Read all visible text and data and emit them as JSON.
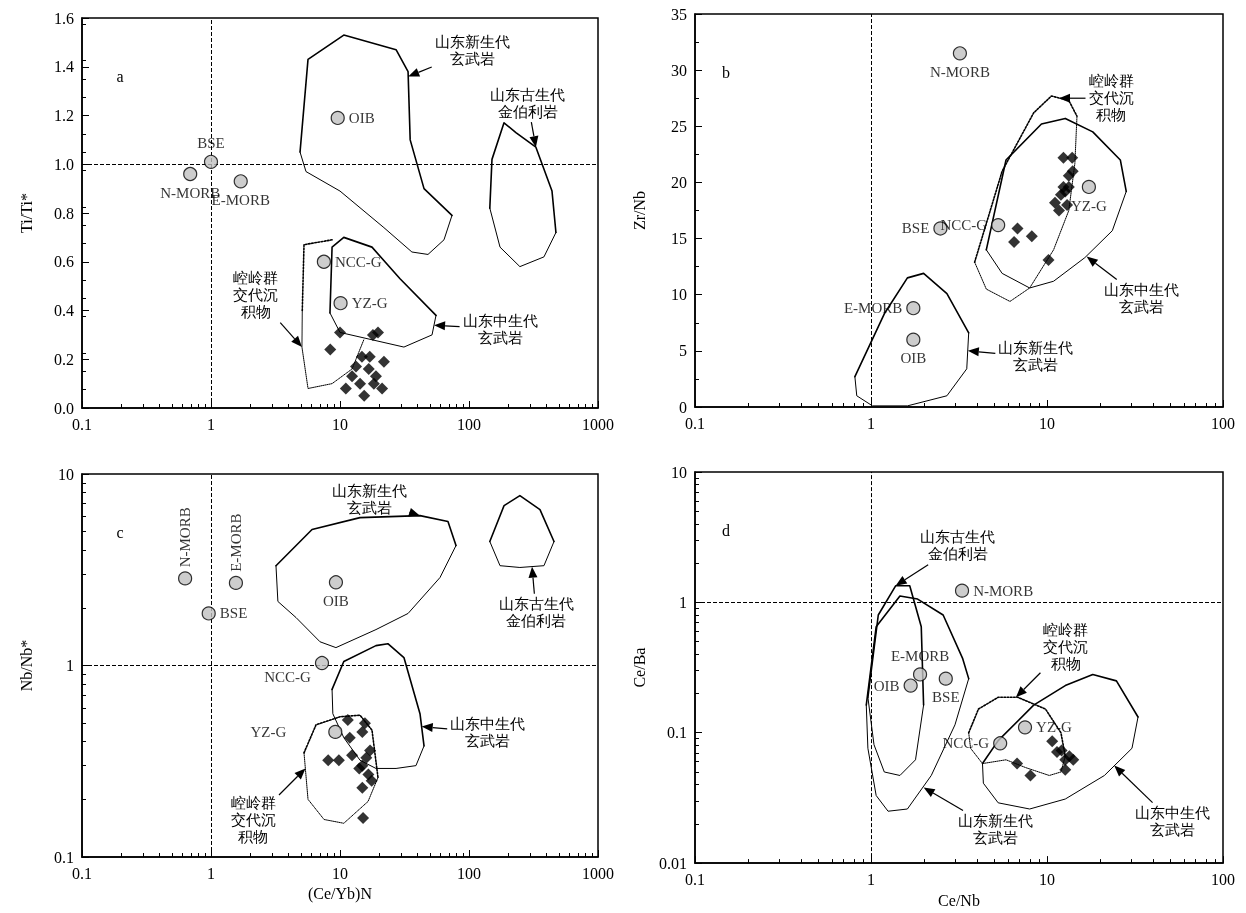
{
  "chart_data": [
    {
      "type": "scatter",
      "ylabel": "Ti/Ti*",
      "log": "x",
      "xlim": [
        0.1,
        1000
      ],
      "xticks": [
        0.1,
        1,
        10,
        100,
        1000
      ],
      "ylim": [
        0,
        1.6
      ],
      "yticks": [
        {
          "value": 0,
          "label": "0.0"
        },
        0.2,
        0.4,
        0.6,
        0.8,
        {
          "value": 1,
          "label": "1.0"
        },
        1.2,
        1.4,
        1.6
      ],
      "ref_lines": [
        {
          "axis": "x",
          "value": 1,
          "line_style": "dashed"
        },
        {
          "axis": "y",
          "value": 1,
          "line_style": "dashed"
        }
      ],
      "annotations": [
        "a",
        {
          "text": "山东新生代玄武岩",
          "x": 33.8,
          "y": 1.36
        },
        {
          "text": "山东古生代金伯利岩",
          "x": 330,
          "y": 1.07
        },
        {
          "text": "山东中生代玄武岩",
          "x": 53.6,
          "y": 0.34
        },
        {
          "text": "崆岭群交代沉积物",
          "x": 5.07,
          "y": 0.25
        }
      ],
      "series": [
        {
          "type": "line",
          "color": "#000000",
          "line_style": "solid",
          "marker": "none",
          "x": [
            4.9,
            5.65,
            10.7,
            27.2,
            33.7,
            35,
            44.8,
            73.8
          ],
          "values": [
            1.05,
            1.43,
            1.53,
            1.47,
            1.38,
            1.1,
            0.9,
            0.79
          ]
        },
        {
          "type": "line",
          "color": "#000000",
          "line_style": "solid",
          "marker": "none",
          "x": [
            4.9,
            5.45,
            10,
            21.9,
            36.1,
            48.1,
            64.0,
            73.8
          ],
          "values": [
            1.05,
            0.97,
            0.89,
            0.74,
            0.64,
            0.63,
            0.69,
            0.79
          ]
        },
        {
          "type": "line",
          "color": "#000000",
          "line_style": "solid",
          "marker": "none",
          "x": [
            145,
            150.7,
            186.8,
            231,
            330,
            440,
            472
          ],
          "values": [
            0.82,
            1.02,
            1.17,
            1.13,
            1.07,
            0.89,
            0.72
          ]
        },
        {
          "type": "line",
          "color": "#000000",
          "line_style": "solid",
          "marker": "none",
          "x": [
            145,
            174,
            248,
            381,
            472
          ],
          "values": [
            0.82,
            0.66,
            0.58,
            0.62,
            0.72
          ]
        },
        {
          "type": "line",
          "color": "#000000",
          "line_style": "solid",
          "marker": "none",
          "x": [
            8.36,
            8.68,
            10.7,
            17.7,
            29.2,
            55.5
          ],
          "values": [
            0.39,
            0.66,
            0.7,
            0.66,
            0.53,
            0.38
          ]
        },
        {
          "type": "line",
          "color": "#000000",
          "line_style": "solid",
          "marker": "none",
          "x": [
            8.36,
            10,
            17.7,
            31.3,
            51.7,
            55.5
          ],
          "values": [
            0.39,
            0.31,
            0.28,
            0.25,
            0.3,
            0.38
          ]
        },
        {
          "type": "line",
          "color": "#000000",
          "line_style": "dotted",
          "marker": "none",
          "x": [
            5.1,
            5.26,
            8.68
          ],
          "values": [
            0.4,
            0.67,
            0.69
          ]
        },
        {
          "type": "line",
          "color": "#000000",
          "line_style": "dotted",
          "marker": "none",
          "x": [
            5.1,
            5.07,
            5.65,
            8.68,
            12.4,
            15.3
          ],
          "values": [
            0.4,
            0.25,
            0.08,
            0.1,
            0.16,
            0.28
          ]
        },
        {
          "type": "scatter",
          "color": "#000000",
          "marker": "diamond",
          "x": [
            10,
            8.4,
            19.7,
            18,
            11.1,
            13.3,
            14.8,
            17,
            21.9,
            12.4,
            15.4,
            18.3,
            21.2,
            19,
            16.7,
            14.3
          ],
          "values": [
            0.31,
            0.24,
            0.31,
            0.3,
            0.08,
            0.17,
            0.21,
            0.21,
            0.19,
            0.13,
            0.05,
            0.1,
            0.08,
            0.13,
            0.16,
            0.1
          ]
        },
        {
          "type": "scatter",
          "name": "N-MORB",
          "color": "#c0c0c0",
          "marker": "circle",
          "x": [
            0.69
          ],
          "values": [
            0.96
          ]
        },
        {
          "type": "scatter",
          "name": "BSE",
          "color": "#c0c0c0",
          "marker": "circle",
          "x": [
            1.0
          ],
          "values": [
            1.01
          ]
        },
        {
          "type": "scatter",
          "name": "E-MORB",
          "color": "#c0c0c0",
          "marker": "circle",
          "x": [
            1.7
          ],
          "values": [
            0.93
          ]
        },
        {
          "type": "scatter",
          "name": "OIB",
          "color": "#c0c0c0",
          "marker": "circle",
          "x": [
            9.6
          ],
          "values": [
            1.19
          ]
        },
        {
          "type": "scatter",
          "name": "NCC-G",
          "color": "#c0c0c0",
          "marker": "circle",
          "x": [
            7.5
          ],
          "values": [
            0.6
          ]
        },
        {
          "type": "scatter",
          "name": "YZ-G",
          "color": "#c0c0c0",
          "marker": "circle",
          "x": [
            10.1
          ],
          "values": [
            0.43
          ]
        }
      ]
    },
    {
      "type": "scatter",
      "ylabel": "Zr/Nb",
      "log": "x",
      "xlim": [
        0.1,
        100
      ],
      "xticks": [
        0.1,
        1,
        10,
        100
      ],
      "ylim": [
        0,
        35
      ],
      "yticks": [
        0,
        5,
        10,
        15,
        20,
        25,
        30,
        35
      ],
      "ref_lines": [
        {
          "axis": "x",
          "value": 1,
          "line_style": "dashed"
        }
      ],
      "annotations": [
        "b",
        {
          "text": "崆岭群交代沉积物",
          "x": 11.7,
          "y": 27.5
        },
        {
          "text": "山东中生代玄武岩",
          "x": 16.8,
          "y": 13.4
        },
        {
          "text": "山东新生代玄武岩",
          "x": 3.55,
          "y": 5.0
        }
      ],
      "series": [
        {
          "type": "line",
          "color": "#000000",
          "line_style": "solid",
          "marker": "none",
          "x": [
            0.81,
            1.19,
            1.61,
            1.99,
            2.7,
            3.59
          ],
          "values": [
            2.7,
            8.3,
            11.5,
            11.9,
            10.1,
            6.6
          ]
        },
        {
          "type": "line",
          "color": "#000000",
          "line_style": "solid",
          "marker": "none",
          "x": [
            0.81,
            0.83,
            1.02,
            1.61,
            2.7,
            3.5,
            3.59
          ],
          "values": [
            2.7,
            1.0,
            0.1,
            0.1,
            1.0,
            3.4,
            6.6
          ]
        },
        {
          "type": "line",
          "color": "#000000",
          "line_style": "solid",
          "marker": "none",
          "x": [
            4.52,
            5.85,
            9.3,
            12.7,
            18.2,
            26.1,
            28.2
          ],
          "values": [
            14.0,
            22.0,
            25.2,
            25.7,
            24.5,
            22.0,
            19.2
          ]
        },
        {
          "type": "line",
          "color": "#000000",
          "line_style": "solid",
          "marker": "none",
          "x": [
            4.52,
            5.56,
            7.97,
            10.9,
            16.4,
            23.5,
            28.2
          ],
          "values": [
            14.0,
            11.9,
            10.6,
            11.2,
            13.3,
            15.7,
            19.2
          ]
        },
        {
          "type": "line",
          "color": "#000000",
          "line_style": "dotted",
          "marker": "none",
          "x": [
            3.88,
            5.56,
            8.4,
            10.6,
            13.3,
            14.8
          ],
          "values": [
            12.9,
            21.0,
            26.2,
            27.7,
            27.3,
            25.9
          ]
        },
        {
          "type": "line",
          "color": "#000000",
          "line_style": "dotted",
          "marker": "none",
          "x": [
            3.88,
            4.52,
            6.16,
            7.97,
            10.9,
            13.3,
            14.4,
            14.8
          ],
          "values": [
            12.9,
            10.5,
            9.4,
            10.6,
            14.0,
            17.5,
            21.7,
            25.9
          ]
        },
        {
          "type": "scatter",
          "color": "#000000",
          "marker": "diamond",
          "x": [
            12.4,
            13.9,
            13.3,
            14.0,
            12.4,
            12.0,
            11.1,
            11.7,
            13.0,
            12.7,
            6.8,
            6.5,
            8.2,
            10.2,
            13.3
          ],
          "values": [
            22.2,
            22.2,
            20.6,
            21.0,
            19.6,
            18.9,
            18.2,
            17.5,
            18.0,
            19.2,
            15.9,
            14.7,
            15.2,
            13.1,
            19.6
          ]
        },
        {
          "type": "scatter",
          "name": "N-MORB",
          "color": "#c0c0c0",
          "marker": "circle",
          "x": [
            3.2
          ],
          "values": [
            31.5
          ]
        },
        {
          "type": "scatter",
          "name": "BSE",
          "color": "#c0c0c0",
          "marker": "circle",
          "x": [
            2.48
          ],
          "values": [
            15.9
          ]
        },
        {
          "type": "scatter",
          "name": "E-MORB",
          "color": "#c0c0c0",
          "marker": "circle",
          "x": [
            1.74
          ],
          "values": [
            8.8
          ]
        },
        {
          "type": "scatter",
          "name": "OIB",
          "color": "#c0c0c0",
          "marker": "circle",
          "x": [
            1.74
          ],
          "values": [
            6.0
          ]
        },
        {
          "type": "scatter",
          "name": "NCC-G",
          "color": "#c0c0c0",
          "marker": "circle",
          "x": [
            5.28
          ],
          "values": [
            16.2
          ]
        },
        {
          "type": "scatter",
          "name": "YZ-G",
          "color": "#c0c0c0",
          "marker": "circle",
          "x": [
            17.3
          ],
          "values": [
            19.6
          ]
        }
      ]
    },
    {
      "type": "scatter",
      "xlabel": "(Ce/Yb)N",
      "ylabel": "Nb/Nb*",
      "log": "xy",
      "xlim": [
        0.1,
        1000
      ],
      "xticks": [
        0.1,
        1,
        10,
        100,
        1000
      ],
      "ylim": [
        0.1,
        10
      ],
      "yticks": [
        0.1,
        1,
        10
      ],
      "ref_lines": [
        {
          "axis": "x",
          "value": 1,
          "line_style": "dashed"
        },
        {
          "axis": "y",
          "value": 1,
          "line_style": "dashed"
        }
      ],
      "annotations": [
        "c",
        {
          "text": "山东新生代玄武岩",
          "x": 41.7,
          "y": 6.06
        },
        {
          "text": "山东古生代金伯利岩",
          "x": 308,
          "y": 3.28
        },
        {
          "text": "山东中生代玄武岩",
          "x": 43,
          "y": 0.48
        },
        {
          "text": "崆岭群交代沉积物",
          "x": 5.4,
          "y": 0.29
        }
      ],
      "series": [
        {
          "type": "line",
          "color": "#000000",
          "line_style": "solid",
          "marker": "none",
          "x": [
            3.19,
            6.07,
            14.3,
            41.7,
            68.7,
            79.3
          ],
          "values": [
            3.32,
            5.13,
            5.92,
            6.06,
            5.65,
            4.23
          ]
        },
        {
          "type": "line",
          "color": "#000000",
          "line_style": "solid",
          "marker": "none",
          "x": [
            3.19,
            3.3,
            4.56,
            7.0,
            9.3,
            19.0,
            33.7,
            59.6,
            79.3
          ],
          "values": [
            3.32,
            2.16,
            1.78,
            1.33,
            1.24,
            1.54,
            1.87,
            2.88,
            4.23
          ]
        },
        {
          "type": "line",
          "color": "#000000",
          "line_style": "solid",
          "marker": "none",
          "x": [
            145,
            187,
            248,
            355,
            456
          ],
          "values": [
            4.44,
            6.84,
            7.71,
            6.52,
            4.44
          ]
        },
        {
          "type": "line",
          "color": "#000000",
          "line_style": "solid",
          "marker": "none",
          "x": [
            145,
            174,
            248,
            381,
            456
          ],
          "values": [
            4.44,
            3.32,
            3.25,
            3.32,
            4.44
          ]
        },
        {
          "type": "line",
          "color": "#000000",
          "line_style": "solid",
          "marker": "none",
          "x": [
            8.68,
            10.7,
            19.0,
            23.5,
            31.3,
            41.7,
            44.8
          ],
          "values": [
            0.75,
            1.05,
            1.27,
            1.3,
            1.1,
            0.56,
            0.38
          ]
        },
        {
          "type": "line",
          "color": "#000000",
          "line_style": "solid",
          "marker": "none",
          "x": [
            8.68,
            8.8,
            10.7,
            14.3,
            19.0,
            27.2,
            38.8,
            44.8
          ],
          "values": [
            0.75,
            0.56,
            0.42,
            0.32,
            0.29,
            0.29,
            0.3,
            0.38
          ]
        },
        {
          "type": "line",
          "color": "#000000",
          "line_style": "dotted",
          "marker": "none",
          "x": [
            5.26,
            6.52,
            10,
            14.3,
            17.7,
            19.7
          ],
          "values": [
            0.35,
            0.49,
            0.54,
            0.55,
            0.46,
            0.26
          ]
        },
        {
          "type": "line",
          "color": "#000000",
          "line_style": "dotted",
          "marker": "none",
          "x": [
            5.26,
            5.65,
            7.52,
            10.7,
            16.5,
            19.7
          ],
          "values": [
            0.35,
            0.2,
            0.157,
            0.15,
            0.195,
            0.26
          ]
        },
        {
          "type": "scatter",
          "color": "#000000",
          "marker": "diamond",
          "x": [
            11.5,
            15.6,
            11.9,
            14.9,
            8.1,
            9.8,
            12.4,
            17.1,
            14.9,
            16.6,
            17.6,
            14.9,
            15.1,
            14.1,
            16.0
          ],
          "values": [
            0.52,
            0.5,
            0.42,
            0.45,
            0.32,
            0.32,
            0.34,
            0.36,
            0.3,
            0.27,
            0.25,
            0.23,
            0.16,
            0.29,
            0.33
          ]
        },
        {
          "type": "scatter",
          "name": "N-MORB",
          "color": "#c0c0c0",
          "marker": "circle",
          "x": [
            0.63
          ],
          "values": [
            2.85
          ]
        },
        {
          "type": "scatter",
          "name": "BSE",
          "color": "#c0c0c0",
          "marker": "circle",
          "x": [
            0.96
          ],
          "values": [
            1.87
          ]
        },
        {
          "type": "scatter",
          "name": "E-MORB",
          "color": "#c0c0c0",
          "marker": "circle",
          "x": [
            1.56
          ],
          "values": [
            2.7
          ]
        },
        {
          "type": "scatter",
          "name": "OIB",
          "color": "#c0c0c0",
          "marker": "circle",
          "x": [
            9.3
          ],
          "values": [
            2.72
          ]
        },
        {
          "type": "scatter",
          "name": "NCC-G",
          "color": "#c0c0c0",
          "marker": "circle",
          "x": [
            7.25
          ],
          "values": [
            1.03
          ]
        },
        {
          "type": "scatter",
          "name": "YZ-G",
          "color": "#c0c0c0",
          "marker": "circle",
          "x": [
            9.2
          ],
          "values": [
            0.45
          ]
        }
      ]
    },
    {
      "type": "scatter",
      "xlabel": "Ce/Nb",
      "ylabel": "Ce/Ba",
      "log": "xy",
      "xlim": [
        0.1,
        100
      ],
      "xticks": [
        0.1,
        1,
        10,
        100
      ],
      "ylim": [
        0.01,
        10
      ],
      "yticks": [
        0.01,
        0.1,
        1,
        10
      ],
      "ref_lines": [
        {
          "axis": "x",
          "value": 1,
          "line_style": "dashed"
        },
        {
          "axis": "y",
          "value": 1,
          "line_style": "dashed"
        }
      ],
      "annotations": [
        "d",
        {
          "text": "山东古生代金伯利岩",
          "x": 1.38,
          "y": 1.34
        },
        {
          "text": "山东新生代玄武岩",
          "x": 1.99,
          "y": 0.038
        },
        {
          "text": "崆岭群交代沉积物",
          "x": 6.66,
          "y": 0.187
        },
        {
          "text": "山东中生代玄武岩",
          "x": 24.1,
          "y": 0.056
        }
      ],
      "series": [
        {
          "type": "line",
          "color": "#000000",
          "line_style": "solid",
          "marker": "none",
          "x": [
            0.96,
            1.1,
            1.38,
            1.66,
            1.93,
            1.99
          ],
          "values": [
            0.187,
            0.8,
            1.34,
            1.34,
            0.65,
            0.163
          ]
        },
        {
          "type": "line",
          "color": "#000000",
          "line_style": "solid",
          "marker": "none",
          "x": [
            0.96,
            1.04,
            1.19,
            1.46,
            1.79,
            1.99
          ],
          "values": [
            0.187,
            0.081,
            0.05,
            0.047,
            0.062,
            0.163
          ]
        },
        {
          "type": "line",
          "color": "#000000",
          "line_style": "solid",
          "marker": "none",
          "x": [
            0.94,
            1.07,
            1.46,
            1.84,
            2.57,
            3.32,
            3.59
          ],
          "values": [
            0.163,
            0.65,
            1.12,
            1.06,
            0.8,
            0.37,
            0.26
          ]
        },
        {
          "type": "line",
          "color": "#000000",
          "line_style": "solid",
          "marker": "none",
          "x": [
            0.94,
            0.96,
            1.07,
            1.25,
            1.61,
            2.2,
            3.0,
            3.59
          ],
          "values": [
            0.163,
            0.076,
            0.033,
            0.025,
            0.026,
            0.047,
            0.115,
            0.26
          ]
        },
        {
          "type": "line",
          "color": "#000000",
          "line_style": "solid",
          "marker": "none",
          "x": [
            4.3,
            5.28,
            8.4,
            12.7,
            18.2,
            24.8,
            32.9
          ],
          "values": [
            0.058,
            0.087,
            0.163,
            0.23,
            0.28,
            0.25,
            0.132
          ]
        },
        {
          "type": "line",
          "color": "#000000",
          "line_style": "solid",
          "marker": "none",
          "x": [
            4.3,
            4.35,
            5.28,
            7.97,
            12.7,
            21.2,
            30.4,
            32.9
          ],
          "values": [
            0.058,
            0.041,
            0.029,
            0.026,
            0.031,
            0.047,
            0.076,
            0.132
          ]
        },
        {
          "type": "line",
          "color": "#000000",
          "line_style": "dotted",
          "marker": "none",
          "x": [
            3.59,
            4.08,
            5.28,
            6.82,
            9.8,
            12.0,
            12.7
          ],
          "values": [
            0.1,
            0.152,
            0.187,
            0.187,
            0.152,
            0.1,
            0.066
          ]
        },
        {
          "type": "line",
          "color": "#000000",
          "line_style": "dotted",
          "marker": "none",
          "x": [
            3.59,
            3.68,
            4.3,
            5.85,
            7.57,
            10.3,
            12.0,
            12.7
          ],
          "values": [
            0.1,
            0.076,
            0.058,
            0.062,
            0.054,
            0.047,
            0.05,
            0.066
          ]
        },
        {
          "type": "scatter",
          "color": "#000000",
          "marker": "diamond",
          "x": [
            10.7,
            12.1,
            13.4,
            14.1,
            12.7,
            6.76,
            8.05,
            11.4,
            12.7
          ],
          "values": [
            0.086,
            0.073,
            0.066,
            0.062,
            0.052,
            0.058,
            0.047,
            0.071,
            0.062
          ]
        },
        {
          "type": "scatter",
          "name": "N-MORB",
          "color": "#c0c0c0",
          "marker": "circle",
          "x": [
            3.29
          ],
          "values": [
            1.23
          ]
        },
        {
          "type": "scatter",
          "name": "BSE",
          "color": "#c0c0c0",
          "marker": "circle",
          "x": [
            2.66
          ],
          "values": [
            0.26
          ]
        },
        {
          "type": "scatter",
          "name": "E-MORB",
          "color": "#c0c0c0",
          "marker": "circle",
          "x": [
            1.9
          ],
          "values": [
            0.28
          ]
        },
        {
          "type": "scatter",
          "name": "OIB",
          "color": "#c0c0c0",
          "marker": "circle",
          "x": [
            1.68
          ],
          "values": [
            0.23
          ]
        },
        {
          "type": "scatter",
          "name": "NCC-G",
          "color": "#c0c0c0",
          "marker": "circle",
          "x": [
            5.42
          ],
          "values": [
            0.083
          ]
        },
        {
          "type": "scatter",
          "name": "YZ-G",
          "color": "#c0c0c0",
          "marker": "circle",
          "x": [
            7.5
          ],
          "values": [
            0.11
          ]
        }
      ]
    }
  ]
}
